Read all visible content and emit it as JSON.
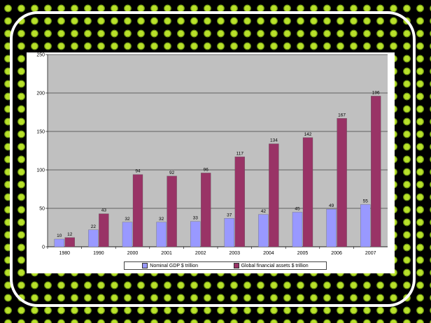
{
  "chart_data": {
    "type": "bar",
    "categories": [
      "1980",
      "1990",
      "2000",
      "2001",
      "2002",
      "2003",
      "2004",
      "2005",
      "2006",
      "2007"
    ],
    "series": [
      {
        "name": "Nominal GDP $ trillion",
        "values": [
          10,
          22,
          32,
          32,
          33,
          37,
          42,
          45,
          49,
          55
        ],
        "color": "#9999ff"
      },
      {
        "name": "Global financial assets $ trillion",
        "values": [
          12,
          43,
          94,
          92,
          96,
          117,
          134,
          142,
          167,
          196
        ],
        "color": "#993366"
      }
    ],
    "ylim": [
      0,
      250
    ],
    "yticks": [
      "0",
      "50",
      "100",
      "150",
      "200",
      "250"
    ],
    "grid": true,
    "legend": "bottom",
    "plot_background": "#c0c0c0"
  }
}
